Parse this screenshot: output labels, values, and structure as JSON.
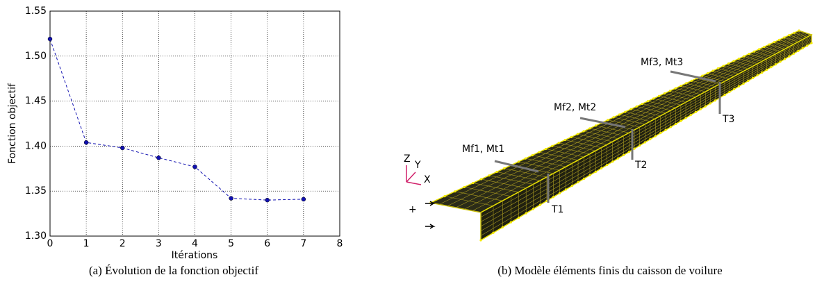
{
  "chart_data": {
    "type": "line",
    "x_label": "Itérations",
    "y_label": "Fonction objectif",
    "x": [
      0,
      1,
      2,
      3,
      4,
      5,
      6,
      7
    ],
    "values": [
      1.519,
      1.404,
      1.398,
      1.387,
      1.377,
      1.342,
      1.34,
      1.341
    ],
    "color": "#1010b0",
    "xlim": [
      0,
      8
    ],
    "xticks": [
      0,
      1,
      2,
      3,
      4,
      5,
      6,
      7,
      8
    ],
    "ylim": [
      1.3,
      1.55
    ],
    "yticks": [
      {
        "value": 1.3,
        "label": "1.30"
      },
      1.35,
      {
        "value": 1.4,
        "label": "1.40"
      },
      1.45,
      {
        "value": 1.5,
        "label": "1.50"
      },
      1.55
    ],
    "grid": true
  },
  "captions": [
    "(a)  Évolution de la fonction objectif",
    "(b)  Modèle éléments finis du caisson de voilure"
  ],
  "diagram": {
    "labels": [
      "Mf1, Mt1",
      "T1",
      "Mf2, Mt2",
      "T2",
      "Mf3, Mt3",
      "T3"
    ],
    "axes": [
      "Z",
      "Y",
      "X"
    ]
  }
}
